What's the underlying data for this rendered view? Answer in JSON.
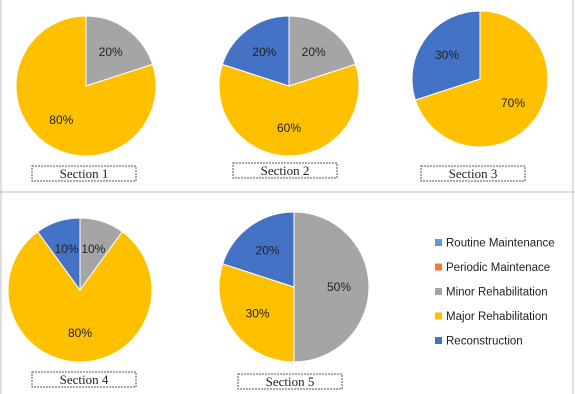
{
  "chart_data": [
    {
      "type": "pie",
      "caption": "Section 1",
      "slices": [
        {
          "label": "Minor Rehabilitation",
          "value": 20,
          "display": "20%",
          "color": "#a5a5a5"
        },
        {
          "label": "Major Rehabilitation",
          "value": 80,
          "display": "80%",
          "color": "#ffc000"
        }
      ]
    },
    {
      "type": "pie",
      "caption": "Section 2",
      "slices": [
        {
          "label": "Minor Rehabilitation",
          "value": 20,
          "display": "20%",
          "color": "#a5a5a5"
        },
        {
          "label": "Major Rehabilitation",
          "value": 60,
          "display": "60%",
          "color": "#ffc000"
        },
        {
          "label": "Reconstruction",
          "value": 20,
          "display": "20%",
          "color": "#4472c4"
        }
      ]
    },
    {
      "type": "pie",
      "caption": "Section 3",
      "slices": [
        {
          "label": "Major Rehabilitation",
          "value": 70,
          "display": "70%",
          "color": "#ffc000"
        },
        {
          "label": "Reconstruction",
          "value": 30,
          "display": "30%",
          "color": "#4472c4"
        }
      ]
    },
    {
      "type": "pie",
      "caption": "Section 4",
      "slices": [
        {
          "label": "Minor Rehabilitation",
          "value": 10,
          "display": "10%",
          "color": "#a5a5a5"
        },
        {
          "label": "Major Rehabilitation",
          "value": 80,
          "display": "80%",
          "color": "#ffc000"
        },
        {
          "label": "Reconstruction",
          "value": 10,
          "display": "10%",
          "color": "#4472c4"
        }
      ]
    },
    {
      "type": "pie",
      "caption": "Section 5",
      "slices": [
        {
          "label": "Minor Rehabilitation",
          "value": 50,
          "display": "50%",
          "color": "#a5a5a5"
        },
        {
          "label": "Major Rehabilitation",
          "value": 30,
          "display": "30%",
          "color": "#ffc000"
        },
        {
          "label": "Reconstruction",
          "value": 20,
          "display": "20%",
          "color": "#4472c4"
        }
      ]
    }
  ],
  "legend": {
    "position": "right",
    "items": [
      {
        "label": "Routine Maintenance",
        "color": "#5b9bd5"
      },
      {
        "label": "Periodic Maintenace",
        "color": "#ed7d31"
      },
      {
        "label": "Minor Rehabilitation",
        "color": "#a5a5a5"
      },
      {
        "label": "Major Rehabilitation",
        "color": "#ffc000"
      },
      {
        "label": "Reconstruction",
        "color": "#4472c4"
      }
    ]
  }
}
